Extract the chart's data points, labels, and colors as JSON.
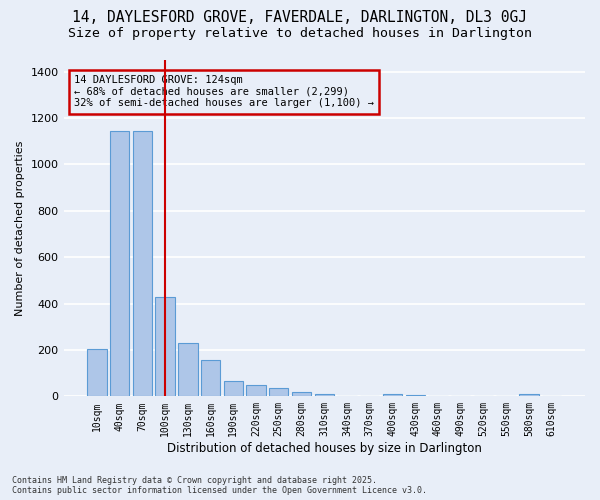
{
  "title1": "14, DAYLESFORD GROVE, FAVERDALE, DARLINGTON, DL3 0GJ",
  "title2": "Size of property relative to detached houses in Darlington",
  "xlabel": "Distribution of detached houses by size in Darlington",
  "ylabel": "Number of detached properties",
  "categories": [
    "10sqm",
    "40sqm",
    "70sqm",
    "100sqm",
    "130sqm",
    "160sqm",
    "190sqm",
    "220sqm",
    "250sqm",
    "280sqm",
    "310sqm",
    "340sqm",
    "370sqm",
    "400sqm",
    "430sqm",
    "460sqm",
    "490sqm",
    "520sqm",
    "550sqm",
    "580sqm",
    "610sqm"
  ],
  "values": [
    205,
    1145,
    1145,
    430,
    228,
    155,
    65,
    50,
    35,
    18,
    8,
    0,
    0,
    8,
    5,
    0,
    0,
    0,
    0,
    12,
    0
  ],
  "bar_color": "#aec6e8",
  "bar_edge_color": "#5b9bd5",
  "vline_x": 3,
  "vline_color": "#cc0000",
  "annotation_title": "14 DAYLESFORD GROVE: 124sqm",
  "annotation_line1": "← 68% of detached houses are smaller (2,299)",
  "annotation_line2": "32% of semi-detached houses are larger (1,100) →",
  "annotation_box_color": "#cc0000",
  "ylim": [
    0,
    1450
  ],
  "yticks": [
    0,
    200,
    400,
    600,
    800,
    1000,
    1200,
    1400
  ],
  "bg_color": "#e8eef8",
  "footer1": "Contains HM Land Registry data © Crown copyright and database right 2025.",
  "footer2": "Contains public sector information licensed under the Open Government Licence v3.0.",
  "grid_color": "#ffffff",
  "title1_fontsize": 10.5,
  "title2_fontsize": 9.5
}
